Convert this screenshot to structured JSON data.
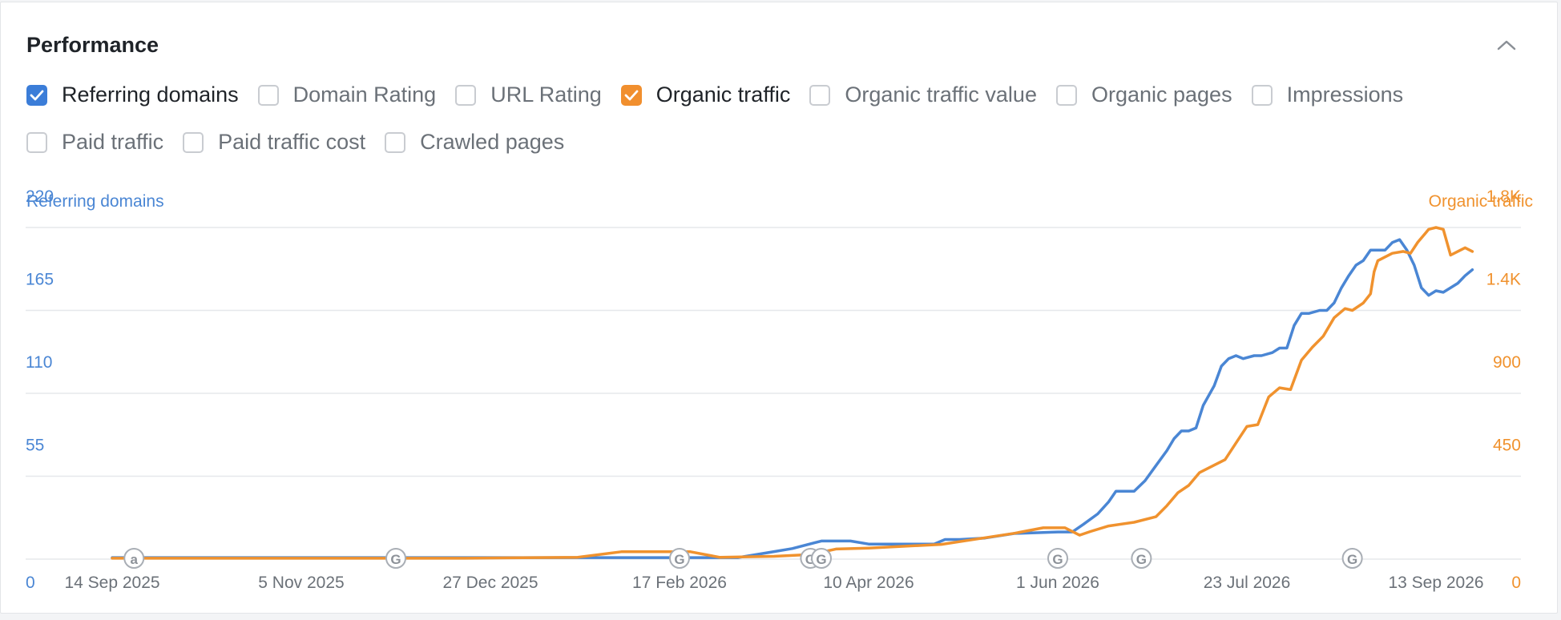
{
  "header": {
    "title": "Performance"
  },
  "metrics": [
    [
      {
        "label": "Referring domains",
        "checked": true,
        "color": "#3b7dd8"
      },
      {
        "label": "Domain Rating",
        "checked": false
      },
      {
        "label": "URL Rating",
        "checked": false
      },
      {
        "label": "Organic traffic",
        "checked": true,
        "color": "#f18f2e"
      },
      {
        "label": "Organic traffic value",
        "checked": false
      },
      {
        "label": "Organic pages",
        "checked": false
      },
      {
        "label": "Impressions",
        "checked": false
      }
    ],
    [
      {
        "label": "Paid traffic",
        "checked": false
      },
      {
        "label": "Paid traffic cost",
        "checked": false
      },
      {
        "label": "Crawled pages",
        "checked": false
      }
    ]
  ],
  "colors": {
    "left_series": "#4a86d4",
    "right_series": "#f0922e",
    "grid": "#e6e8eb",
    "x_tick": "#6b7178"
  },
  "chart_data": {
    "type": "line",
    "ylabel_left": "Referring domains",
    "ylabel_right": "Organic traffic",
    "x_ticks": [
      "14 Sep 2025",
      "5 Nov 2025",
      "27 Dec 2025",
      "17 Feb 2026",
      "10 Apr 2026",
      "1 Jun 2026",
      "23 Jul 2026",
      "13 Sep 2026"
    ],
    "y_left_ticks": [
      "0",
      "55",
      "110",
      "165",
      "220"
    ],
    "y_right_ticks": [
      "0",
      "450",
      "900",
      "1.4K",
      "1.8K"
    ],
    "ylim_left": [
      0,
      220
    ],
    "ylim_right": [
      0,
      1800
    ],
    "x_range": [
      "2025-09-14",
      "2026-09-13"
    ],
    "annotations": [
      {
        "date": "2025-09-20",
        "label": "a"
      },
      {
        "date": "2025-12-01",
        "label": "G"
      },
      {
        "date": "2026-02-17",
        "label": "G"
      },
      {
        "date": "2026-03-25",
        "label": "G"
      },
      {
        "date": "2026-03-28",
        "label": "G"
      },
      {
        "date": "2026-06-01",
        "label": "G"
      },
      {
        "date": "2026-06-24",
        "label": "G"
      },
      {
        "date": "2026-08-21",
        "label": "G"
      }
    ],
    "series": [
      {
        "name": "Referring domains",
        "axis": "left",
        "points": [
          [
            "2025-09-14",
            1
          ],
          [
            "2025-12-01",
            1
          ],
          [
            "2026-01-15",
            1
          ],
          [
            "2026-02-17",
            1
          ],
          [
            "2026-03-05",
            1
          ],
          [
            "2026-03-10",
            3
          ],
          [
            "2026-03-15",
            5
          ],
          [
            "2026-03-20",
            7
          ],
          [
            "2026-03-28",
            12
          ],
          [
            "2026-04-05",
            12
          ],
          [
            "2026-04-10",
            10
          ],
          [
            "2026-04-20",
            10
          ],
          [
            "2026-04-28",
            10
          ],
          [
            "2026-05-01",
            13
          ],
          [
            "2026-05-05",
            13
          ],
          [
            "2026-05-12",
            14
          ],
          [
            "2026-05-20",
            17
          ],
          [
            "2026-06-01",
            18
          ],
          [
            "2026-06-05",
            18
          ],
          [
            "2026-06-08",
            23
          ],
          [
            "2026-06-12",
            30
          ],
          [
            "2026-06-15",
            38
          ],
          [
            "2026-06-17",
            45
          ],
          [
            "2026-06-20",
            45
          ],
          [
            "2026-06-22",
            45
          ],
          [
            "2026-06-25",
            52
          ],
          [
            "2026-06-28",
            62
          ],
          [
            "2026-07-01",
            72
          ],
          [
            "2026-07-03",
            80
          ],
          [
            "2026-07-05",
            85
          ],
          [
            "2026-07-07",
            85
          ],
          [
            "2026-07-09",
            87
          ],
          [
            "2026-07-11",
            102
          ],
          [
            "2026-07-14",
            115
          ],
          [
            "2026-07-16",
            128
          ],
          [
            "2026-07-18",
            133
          ],
          [
            "2026-07-20",
            135
          ],
          [
            "2026-07-22",
            133
          ],
          [
            "2026-07-25",
            135
          ],
          [
            "2026-07-27",
            135
          ],
          [
            "2026-07-30",
            137
          ],
          [
            "2026-08-01",
            140
          ],
          [
            "2026-08-03",
            140
          ],
          [
            "2026-08-05",
            155
          ],
          [
            "2026-08-07",
            163
          ],
          [
            "2026-08-09",
            163
          ],
          [
            "2026-08-12",
            165
          ],
          [
            "2026-08-14",
            165
          ],
          [
            "2026-08-16",
            170
          ],
          [
            "2026-08-18",
            180
          ],
          [
            "2026-08-20",
            188
          ],
          [
            "2026-08-22",
            195
          ],
          [
            "2026-08-24",
            198
          ],
          [
            "2026-08-26",
            205
          ],
          [
            "2026-08-28",
            205
          ],
          [
            "2026-08-30",
            205
          ],
          [
            "2026-09-01",
            210
          ],
          [
            "2026-09-03",
            212
          ],
          [
            "2026-09-05",
            205
          ],
          [
            "2026-09-07",
            195
          ],
          [
            "2026-09-09",
            180
          ],
          [
            "2026-09-11",
            175
          ],
          [
            "2026-09-13",
            178
          ],
          [
            "2026-09-15",
            177
          ],
          [
            "2026-09-17",
            180
          ],
          [
            "2026-09-19",
            183
          ],
          [
            "2026-09-21",
            188
          ],
          [
            "2026-09-23",
            192
          ]
        ]
      },
      {
        "name": "Organic traffic",
        "axis": "right",
        "points": [
          [
            "2025-09-14",
            5
          ],
          [
            "2025-11-01",
            5
          ],
          [
            "2025-12-20",
            5
          ],
          [
            "2026-01-20",
            10
          ],
          [
            "2026-02-01",
            40
          ],
          [
            "2026-02-20",
            40
          ],
          [
            "2026-02-28",
            10
          ],
          [
            "2026-03-15",
            15
          ],
          [
            "2026-03-25",
            25
          ],
          [
            "2026-04-01",
            55
          ],
          [
            "2026-04-10",
            60
          ],
          [
            "2026-04-20",
            70
          ],
          [
            "2026-04-30",
            80
          ],
          [
            "2026-05-10",
            110
          ],
          [
            "2026-05-20",
            140
          ],
          [
            "2026-05-28",
            170
          ],
          [
            "2026-06-03",
            170
          ],
          [
            "2026-06-07",
            130
          ],
          [
            "2026-06-10",
            150
          ],
          [
            "2026-06-15",
            180
          ],
          [
            "2026-06-22",
            200
          ],
          [
            "2026-06-28",
            230
          ],
          [
            "2026-07-01",
            290
          ],
          [
            "2026-07-04",
            360
          ],
          [
            "2026-07-07",
            400
          ],
          [
            "2026-07-10",
            470
          ],
          [
            "2026-07-14",
            510
          ],
          [
            "2026-07-17",
            540
          ],
          [
            "2026-07-20",
            630
          ],
          [
            "2026-07-23",
            720
          ],
          [
            "2026-07-26",
            730
          ],
          [
            "2026-07-29",
            880
          ],
          [
            "2026-08-01",
            930
          ],
          [
            "2026-08-04",
            920
          ],
          [
            "2026-08-07",
            1080
          ],
          [
            "2026-08-10",
            1150
          ],
          [
            "2026-08-13",
            1210
          ],
          [
            "2026-08-16",
            1310
          ],
          [
            "2026-08-19",
            1360
          ],
          [
            "2026-08-21",
            1350
          ],
          [
            "2026-08-24",
            1390
          ],
          [
            "2026-08-26",
            1440
          ],
          [
            "2026-08-27",
            1560
          ],
          [
            "2026-08-28",
            1620
          ],
          [
            "2026-09-01",
            1660
          ],
          [
            "2026-09-04",
            1670
          ],
          [
            "2026-09-06",
            1660
          ],
          [
            "2026-09-08",
            1720
          ],
          [
            "2026-09-11",
            1790
          ],
          [
            "2026-09-13",
            1800
          ],
          [
            "2026-09-15",
            1790
          ],
          [
            "2026-09-17",
            1650
          ],
          [
            "2026-09-19",
            1670
          ],
          [
            "2026-09-21",
            1690
          ],
          [
            "2026-09-23",
            1670
          ]
        ]
      }
    ]
  }
}
